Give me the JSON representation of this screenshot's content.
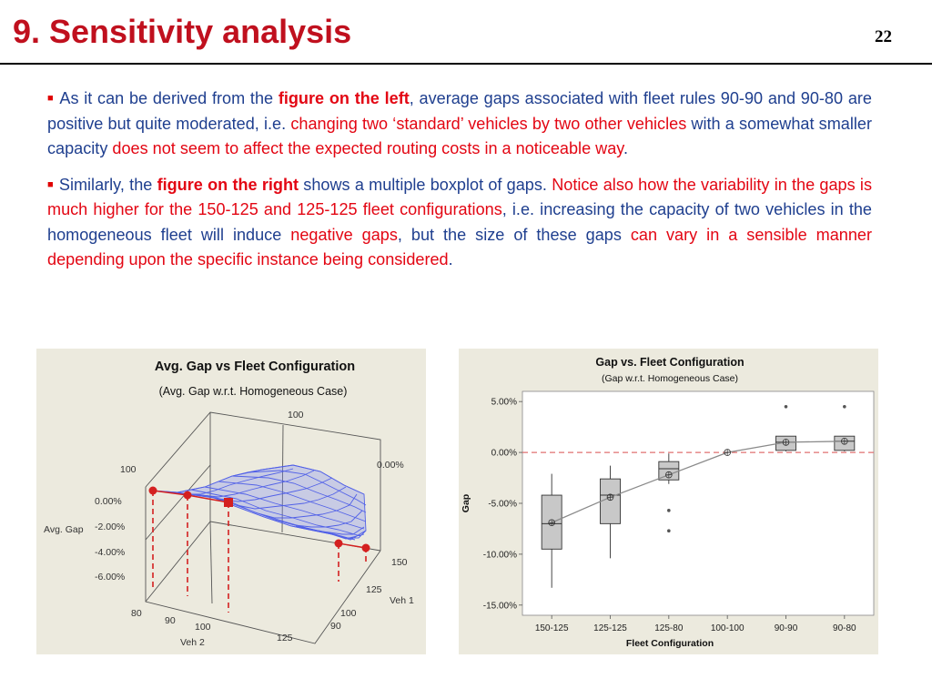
{
  "slide": {
    "title": "9. Sensitivity analysis",
    "page_number": "22"
  },
  "paragraph1": {
    "s1": "As it can be derived from the ",
    "s2": "figure on the left",
    "s3": ", average gaps associated with fleet rules 90-90 and 90-80 are positive but quite moderated, i.e. ",
    "s4": "changing two ‘standard’ vehicles by two other vehicles",
    "s5": " with a somewhat smaller capacity ",
    "s6": "does not seem to affect the expected routing costs in a noticeable way",
    "s7": "."
  },
  "paragraph2": {
    "s1": "Similarly, the ",
    "s2": "figure on the right",
    "s3": " shows a multiple boxplot of gaps. ",
    "s4": "Notice also how the variability in the gaps is much higher for the 150-125 and 125-125 fleet configurations",
    "s5": ", i.e. increasing the capacity of two vehicles in the homogeneous fleet will induce ",
    "s6": "negative gaps",
    "s7": ", but the size of these gaps ",
    "s8": "can vary in a sensible manner depending upon the specific instance being considered",
    "s9": "."
  },
  "left_chart": {
    "title": "Avg. Gap vs Fleet Configuration",
    "subtitle": "(Avg. Gap w.r.t. Homogeneous Case)",
    "z_label": "Avg. Gap",
    "z_ticks": [
      "0.00%",
      "-2.00%",
      "-4.00%",
      "-6.00%"
    ],
    "z_top_left": "100",
    "back_top": "100",
    "back_right": "0.00%",
    "veh2_label": "Veh 2",
    "veh2_ticks": [
      "80",
      "90",
      "100",
      "125"
    ],
    "veh1_label": "Veh 1",
    "veh1_ticks": [
      "150",
      "125",
      "100",
      "90"
    ]
  },
  "chart_data": {
    "type": "box",
    "title": "Gap vs. Fleet Configuration",
    "subtitle": "(Gap w.r.t. Homogeneous Case)",
    "xlabel": "Fleet Configuration",
    "ylabel": "Gap",
    "ylim": [
      -0.16,
      0.06
    ],
    "y_ticks": [
      0.05,
      0,
      -0.05,
      -0.1,
      -0.15
    ],
    "y_tick_labels": [
      "5.00%",
      "0.00%",
      "-5.00%",
      "-10.00%",
      "-15.00%"
    ],
    "reference_line": 0,
    "categories": [
      "150-125",
      "125-125",
      "125-80",
      "100-100",
      "90-90",
      "90-80"
    ],
    "boxes": [
      {
        "min": -0.133,
        "q1": -0.095,
        "median": -0.07,
        "q3": -0.042,
        "max": -0.021,
        "mean": -0.069,
        "outliers": []
      },
      {
        "min": -0.104,
        "q1": -0.07,
        "median": -0.042,
        "q3": -0.026,
        "max": -0.013,
        "mean": -0.044,
        "outliers": []
      },
      {
        "min": -0.031,
        "q1": -0.027,
        "median": -0.016,
        "q3": -0.009,
        "max": -0.001,
        "mean": -0.022,
        "outliers": [
          -0.057,
          -0.077
        ]
      },
      {
        "min": 0,
        "q1": 0,
        "median": 0,
        "q3": 0,
        "max": 0,
        "mean": 0,
        "outliers": []
      },
      {
        "min": 0.001,
        "q1": 0.002,
        "median": 0.01,
        "q3": 0.016,
        "max": 0.016,
        "mean": 0.01,
        "outliers": [
          0.045
        ]
      },
      {
        "min": 0.001,
        "q1": 0.002,
        "median": 0.011,
        "q3": 0.016,
        "max": 0.016,
        "mean": 0.011,
        "outliers": [
          0.045
        ]
      }
    ],
    "colors": {
      "box_fill": "#c8c8c8",
      "reference": "#e07070",
      "mean_line": "#8a8a8a"
    }
  },
  "colors": {
    "title": "#c0101e",
    "body_text": "#1f3f8f",
    "highlight": "#e30613",
    "panel_bg": "#eceade"
  }
}
